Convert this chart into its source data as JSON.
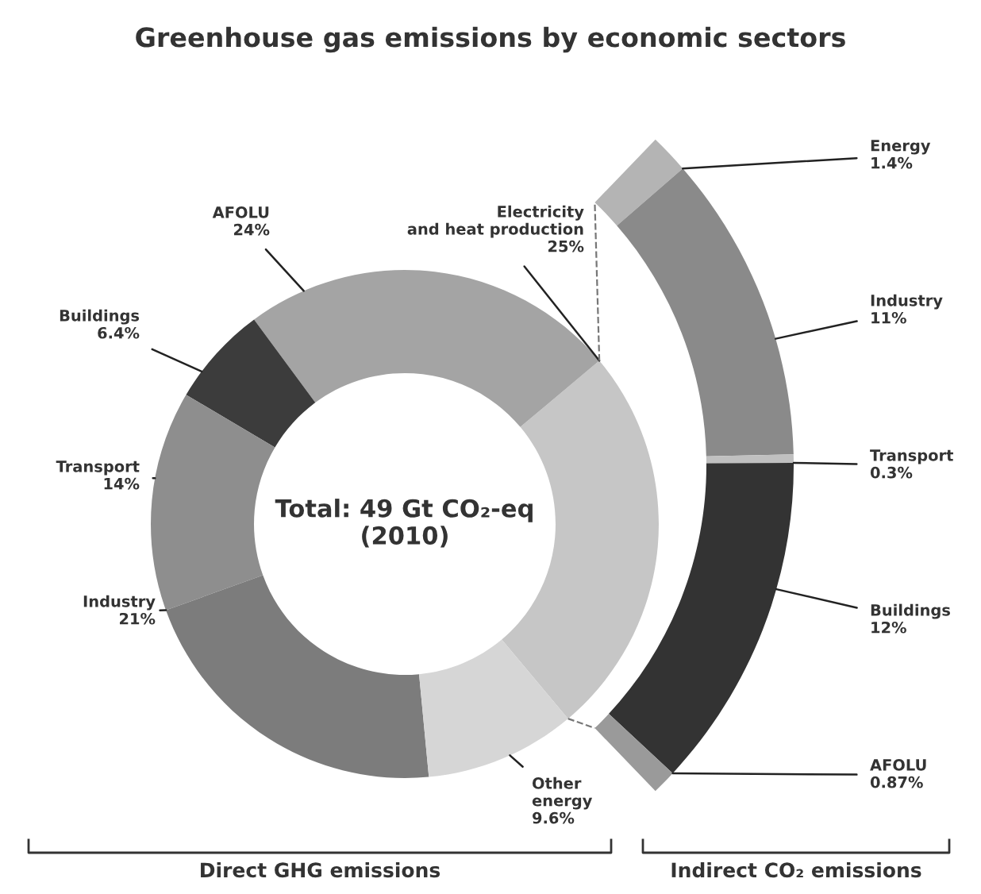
{
  "chart_data": [
    {
      "type": "donut",
      "title": "Greenhouse gas emissions by economic sectors",
      "categories": [
        "Electricity\nand heat production",
        "AFOLU",
        "Buildings",
        "Transport",
        "Industry",
        "Other\nenergy"
      ],
      "values": [
        25,
        24,
        6.4,
        14,
        21,
        9.6
      ],
      "colors": [
        "#c6c6c6",
        "#a4a4a4",
        "#3c3c3c",
        "#8e8e8e",
        "#7c7c7c",
        "#d6d6d6"
      ],
      "value_labels": [
        "25%",
        "24%",
        "6.4%",
        "14%",
        "21%",
        "9.6%"
      ],
      "annotations": [
        "Total: 49 Gt CO₂-eq\n(2010)"
      ],
      "xlabel": "Direct GHG emissions"
    },
    {
      "type": "donut",
      "categories": [
        "Energy",
        "Industry",
        "Transport",
        "Buildings",
        "AFOLU"
      ],
      "values": [
        1.4,
        11,
        0.3,
        12,
        0.87
      ],
      "colors": [
        "#b4b4b4",
        "#8a8a8a",
        "#c0c0c0",
        "#333333",
        "#9a9a9a"
      ],
      "value_labels": [
        "1.4%",
        "11%",
        "0.3%",
        "12%",
        "0.87%"
      ],
      "xlabel": "Indirect CO₂ emissions"
    }
  ]
}
